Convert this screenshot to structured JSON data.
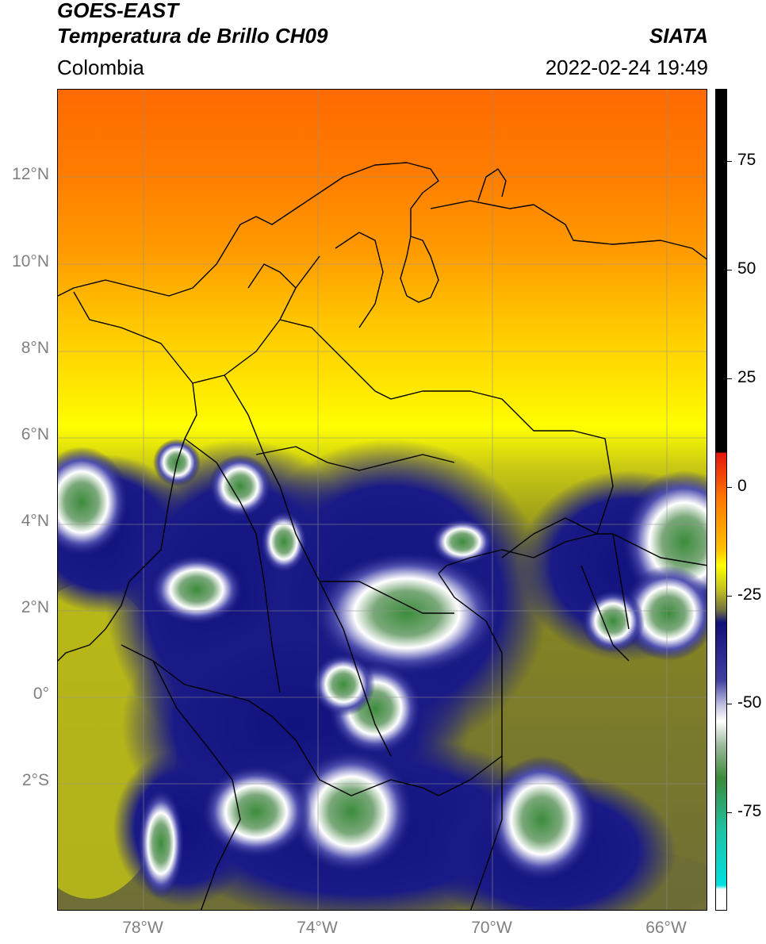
{
  "header": {
    "satellite": "GOES-EAST",
    "product": "Temperatura de Brillo CH09",
    "brand": "SIATA",
    "region": "Colombia",
    "timestamp": "2022-02-24 19:49"
  },
  "axes": {
    "lat_labels": [
      "12°N",
      "10°N",
      "8°N",
      "6°N",
      "4°N",
      "2°N",
      "0°",
      "2°S"
    ],
    "lon_labels": [
      "78°W",
      "74°W",
      "70°W",
      "66°W"
    ]
  },
  "colorbar": {
    "labels": [
      "75",
      "50",
      "25",
      "0",
      "-25",
      "-50",
      "-75"
    ],
    "colors": {
      "black": "#000000",
      "red": "#e4160d",
      "orange": "#ff8a00",
      "yellow": "#ffff00",
      "olive": "#8a8a20",
      "navy": "#10107a",
      "white": "#ffffff",
      "green": "#3a8a3a",
      "teal": "#20c0a0",
      "cyan": "#00e0e0"
    }
  }
}
